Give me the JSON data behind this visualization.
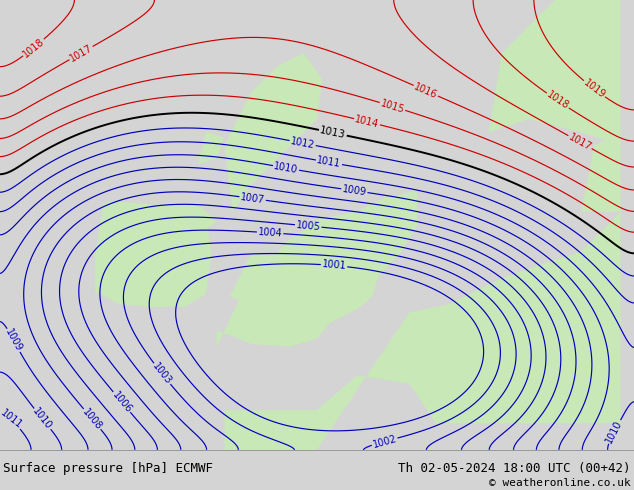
{
  "title_left": "Surface pressure [hPa] ECMWF",
  "title_right": "Th 02-05-2024 18:00 UTC (00+42)",
  "copyright": "© weatheronline.co.uk",
  "bg_color": "#d4d4d4",
  "land_color": "#c8e8b8",
  "footer_bg": "#e0e0e0",
  "footer_text_color": "#000000",
  "blue_color": "#0000bb",
  "red_color": "#cc0000",
  "black_color": "#000000",
  "label_fontsize": 7,
  "footer_fontsize": 9,
  "lon_min": -14,
  "lon_max": 10,
  "lat_min": 46,
  "lat_max": 63
}
